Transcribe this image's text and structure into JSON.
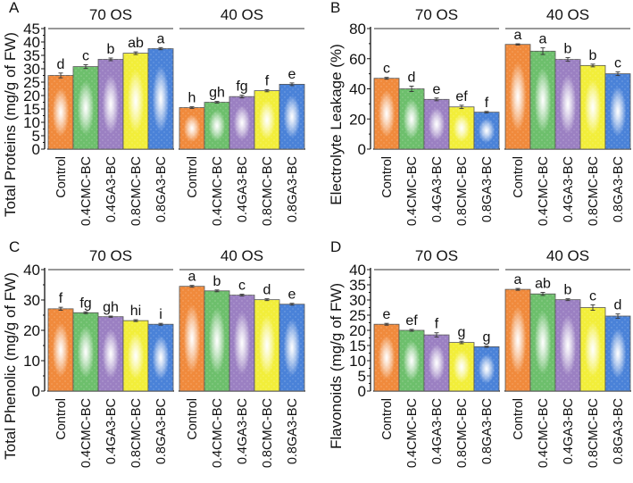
{
  "chart_data": [
    {
      "type": "bar",
      "panel_letter": "A",
      "ylabel": "Total Proteins (mg/g of FW)",
      "ylim": [
        0,
        45
      ],
      "ytick_step": 5,
      "groups": [
        "70 OS",
        "40 OS"
      ],
      "categories": [
        "Control",
        "0.4CMC-BC",
        "0.4GA3-BC",
        "0.8CMC-BC",
        "0.8GA3-BC"
      ],
      "series": [
        {
          "name": "70 OS",
          "values": [
            27.5,
            30.8,
            33.5,
            35.8,
            37.5
          ],
          "errors": [
            0.9,
            0.7,
            0.5,
            0.5,
            0.4
          ],
          "letters": [
            "d",
            "c",
            "b",
            "ab",
            "a"
          ]
        },
        {
          "name": "40 OS",
          "values": [
            15.5,
            17.5,
            19.6,
            21.8,
            24.2
          ],
          "errors": [
            0.3,
            0.3,
            0.5,
            0.4,
            0.5
          ],
          "letters": [
            "h",
            "gh",
            "fg",
            "f",
            "e"
          ]
        }
      ]
    },
    {
      "type": "bar",
      "panel_letter": "B",
      "ylabel": "Electrolyte Leakage (%)",
      "ylim": [
        0,
        80
      ],
      "ytick_step": 20,
      "groups": [
        "70 OS",
        "40 OS"
      ],
      "categories": [
        "Control",
        "0.4CMC-BC",
        "0.4GA3-BC",
        "0.8CMC-BC",
        "0.8GA3-BC"
      ],
      "series": [
        {
          "name": "70 OS",
          "values": [
            47,
            40,
            33,
            28,
            24.5
          ],
          "errors": [
            0.6,
            1.8,
            0.9,
            1.1,
            0.5
          ],
          "letters": [
            "c",
            "d",
            "e",
            "ef",
            "f"
          ]
        },
        {
          "name": "40 OS",
          "values": [
            69.5,
            65,
            59.5,
            55.5,
            50
          ],
          "errors": [
            0.4,
            2.2,
            1.2,
            0.9,
            1.2
          ],
          "letters": [
            "a",
            "a",
            "b",
            "b",
            "c"
          ]
        }
      ]
    },
    {
      "type": "bar",
      "panel_letter": "C",
      "ylabel": "Total Phenolic (mg/g of FW)",
      "ylim": [
        0,
        40
      ],
      "ytick_step": 10,
      "groups": [
        "70 OS",
        "40 OS"
      ],
      "categories": [
        "Control",
        "0.4CMC-BC",
        "0.4GA3-BC",
        "0.8CMC-BC",
        "0.8GA3-BC"
      ],
      "series": [
        {
          "name": "70 OS",
          "values": [
            27.1,
            25.8,
            24.5,
            23.2,
            22
          ],
          "errors": [
            0.5,
            0.3,
            0.2,
            0.3,
            0.3
          ],
          "letters": [
            "f",
            "fg",
            "gh",
            "hi",
            "i"
          ]
        },
        {
          "name": "40 OS",
          "values": [
            34.5,
            33,
            31.6,
            30.1,
            28.6
          ],
          "errors": [
            0.3,
            0.3,
            0.3,
            0.3,
            0.3
          ],
          "letters": [
            "a",
            "b",
            "c",
            "d",
            "e"
          ]
        }
      ]
    },
    {
      "type": "bar",
      "panel_letter": "D",
      "ylabel": "Flavonoids (mg/g of FW)",
      "ylim": [
        0,
        40
      ],
      "ytick_step": 5,
      "groups": [
        "70 OS",
        "40 OS"
      ],
      "categories": [
        "Control",
        "0.4CMC-BC",
        "0.4GA3-BC",
        "0.8CMC-BC",
        "0.8GA3-BC"
      ],
      "series": [
        {
          "name": "70 OS",
          "values": [
            22,
            20,
            18.5,
            16,
            14.6
          ],
          "errors": [
            0.3,
            0.3,
            0.7,
            0.4,
            0.2
          ],
          "letters": [
            "e",
            "ef",
            "f",
            "g",
            "g"
          ]
        },
        {
          "name": "40 OS",
          "values": [
            33.5,
            32,
            30.1,
            27.5,
            24.7
          ],
          "errors": [
            0.3,
            0.5,
            0.3,
            0.9,
            0.7
          ],
          "letters": [
            "a",
            "ab",
            "b",
            "c",
            "d"
          ]
        }
      ]
    }
  ],
  "colors": [
    "#f08a3c",
    "#6dbf6c",
    "#9b80c2",
    "#f2ee3a",
    "#4a82d8"
  ]
}
